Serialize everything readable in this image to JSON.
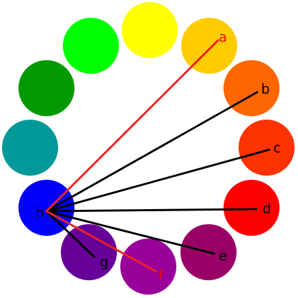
{
  "circles": [
    {
      "id": "yellow",
      "color": "#ffff00"
    },
    {
      "id": "a",
      "color": "#ffcc00",
      "label": "a",
      "label_color": "#dd1111",
      "line_color": "#ee2222"
    },
    {
      "id": "b",
      "color": "#ff6600",
      "label": "b",
      "label_color": "#000000",
      "line_color": "#000000"
    },
    {
      "id": "c",
      "color": "#ff3300",
      "label": "c",
      "label_color": "#000000",
      "line_color": "#000000"
    },
    {
      "id": "d",
      "color": "#ff0000",
      "label": "d",
      "label_color": "#000000",
      "line_color": "#000000"
    },
    {
      "id": "e",
      "color": "#990066",
      "label": "e",
      "label_color": "#000000",
      "line_color": "#000000"
    },
    {
      "id": "f",
      "color": "#990099",
      "label": "f",
      "label_color": "#dd1111",
      "line_color": "#ee2222"
    },
    {
      "id": "g",
      "color": "#660099",
      "label": "g",
      "label_color": "#000000",
      "line_color": "#000000"
    },
    {
      "id": "h",
      "color": "#0000ff",
      "label": "h",
      "label_color": "#000000"
    },
    {
      "id": "teal",
      "color": "#009999"
    },
    {
      "id": "dark-green",
      "color": "#009900"
    },
    {
      "id": "green",
      "color": "#00ff00"
    }
  ],
  "hub": "h"
}
